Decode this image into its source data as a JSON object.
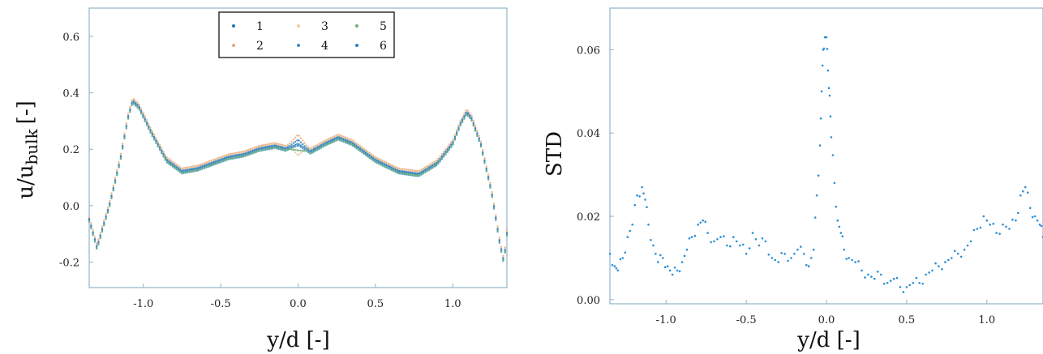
{
  "colors": {
    "run_1": "#1f77b4",
    "run_2": "#e8a87c",
    "run_3": "#f0c9a0",
    "run_4": "#3b8fc4",
    "run_5": "#6fb07f",
    "run_6": "#2a7fc0",
    "std": "#2b8fd6",
    "axis": "#8fb3c8"
  },
  "chart_data": [
    {
      "type": "scatter",
      "xlabel": "y/d [-]",
      "ylabel_main": "u/u",
      "ylabel_sub": "bulk",
      "ylabel_unit": "[-]",
      "xlim": [
        -1.35,
        1.35
      ],
      "ylim": [
        -0.29,
        0.7
      ],
      "x_ticks": [
        -1.0,
        -0.5,
        0.0,
        0.5,
        1.0
      ],
      "x_tick_labels": [
        "-1.0",
        "-0.5",
        "0.0",
        "0.5",
        "1.0"
      ],
      "y_ticks": [
        -0.2,
        0.0,
        0.2,
        0.4,
        0.6
      ],
      "y_tick_labels": [
        "-0.2",
        "0.0",
        "0.2",
        "0.4",
        "0.6"
      ],
      "grid": false,
      "legend": {
        "placement": "top-center",
        "columns": 3,
        "order": [
          "1",
          "3",
          "5",
          "2",
          "4",
          "6"
        ]
      },
      "profile_points": [
        [
          -1.35,
          -0.05
        ],
        [
          -1.3,
          -0.15
        ],
        [
          -1.22,
          0.0
        ],
        [
          -1.15,
          0.16
        ],
        [
          -1.1,
          0.31
        ],
        [
          -1.07,
          0.37
        ],
        [
          -1.03,
          0.35
        ],
        [
          -0.95,
          0.26
        ],
        [
          -0.85,
          0.16
        ],
        [
          -0.75,
          0.12
        ],
        [
          -0.65,
          0.13
        ],
        [
          -0.55,
          0.15
        ],
        [
          -0.45,
          0.17
        ],
        [
          -0.35,
          0.18
        ],
        [
          -0.25,
          0.2
        ],
        [
          -0.15,
          0.21
        ],
        [
          -0.08,
          0.2
        ],
        [
          0.0,
          0.22
        ],
        [
          0.08,
          0.19
        ],
        [
          0.18,
          0.22
        ],
        [
          0.26,
          0.24
        ],
        [
          0.35,
          0.22
        ],
        [
          0.5,
          0.16
        ],
        [
          0.65,
          0.12
        ],
        [
          0.78,
          0.11
        ],
        [
          0.9,
          0.15
        ],
        [
          1.0,
          0.22
        ],
        [
          1.05,
          0.29
        ],
        [
          1.09,
          0.33
        ],
        [
          1.12,
          0.31
        ],
        [
          1.18,
          0.22
        ],
        [
          1.25,
          0.05
        ],
        [
          1.3,
          -0.12
        ],
        [
          1.33,
          -0.2
        ],
        [
          1.35,
          -0.1
        ]
      ],
      "series": [
        {
          "name": "1",
          "color_key": "run_1",
          "offset": 0.0,
          "center_offset": 0.0
        },
        {
          "name": "2",
          "color_key": "run_2",
          "offset": 0.012,
          "center_offset": 0.02
        },
        {
          "name": "3",
          "color_key": "run_3",
          "offset": 0.008,
          "center_offset": -0.05
        },
        {
          "name": "4",
          "color_key": "run_4",
          "offset": -0.006,
          "center_offset": 0.0
        },
        {
          "name": "5",
          "color_key": "run_5",
          "offset": -0.004,
          "center_offset": -0.02
        },
        {
          "name": "6",
          "color_key": "run_6",
          "offset": 0.004,
          "center_offset": 0.01
        }
      ]
    },
    {
      "type": "scatter",
      "xlabel": "y/d [-]",
      "ylabel": "STD",
      "xlim": [
        -1.35,
        1.35
      ],
      "ylim": [
        -0.001,
        0.07
      ],
      "x_ticks": [
        -1.0,
        -0.5,
        0.0,
        0.5,
        1.0
      ],
      "x_tick_labels": [
        "-1.0",
        "-0.5",
        "0.0",
        "0.5",
        "1.0"
      ],
      "y_ticks": [
        0.0,
        0.02,
        0.04,
        0.06
      ],
      "y_tick_labels": [
        "0.00",
        "0.02",
        "0.04",
        "0.06"
      ],
      "grid": false,
      "points": [
        [
          -1.35,
          0.011
        ],
        [
          -1.32,
          0.008
        ],
        [
          -1.3,
          0.007
        ],
        [
          -1.27,
          0.01
        ],
        [
          -1.24,
          0.015
        ],
        [
          -1.21,
          0.018
        ],
        [
          -1.18,
          0.025
        ],
        [
          -1.15,
          0.027
        ],
        [
          -1.13,
          0.024
        ],
        [
          -1.11,
          0.018
        ],
        [
          -1.08,
          0.013
        ],
        [
          -1.05,
          0.009
        ],
        [
          -1.02,
          0.01
        ],
        [
          -0.99,
          0.008
        ],
        [
          -0.96,
          0.006
        ],
        [
          -0.93,
          0.007
        ],
        [
          -0.9,
          0.009
        ],
        [
          -0.87,
          0.012
        ],
        [
          -0.84,
          0.015
        ],
        [
          -0.8,
          0.018
        ],
        [
          -0.77,
          0.019
        ],
        [
          -0.74,
          0.016
        ],
        [
          -0.7,
          0.014
        ],
        [
          -0.66,
          0.015
        ],
        [
          -0.62,
          0.013
        ],
        [
          -0.58,
          0.015
        ],
        [
          -0.54,
          0.013
        ],
        [
          -0.5,
          0.011
        ],
        [
          -0.46,
          0.016
        ],
        [
          -0.42,
          0.013
        ],
        [
          -0.38,
          0.014
        ],
        [
          -0.34,
          0.01
        ],
        [
          -0.3,
          0.009
        ],
        [
          -0.26,
          0.011
        ],
        [
          -0.22,
          0.01
        ],
        [
          -0.18,
          0.012
        ],
        [
          -0.14,
          0.011
        ],
        [
          -0.11,
          0.008
        ],
        [
          -0.08,
          0.012
        ],
        [
          -0.06,
          0.025
        ],
        [
          -0.04,
          0.037
        ],
        [
          -0.03,
          0.05
        ],
        [
          -0.02,
          0.06
        ],
        [
          -0.01,
          0.063
        ],
        [
          0.0,
          0.063
        ],
        [
          0.01,
          0.055
        ],
        [
          0.02,
          0.049
        ],
        [
          0.03,
          0.039
        ],
        [
          0.05,
          0.028
        ],
        [
          0.07,
          0.019
        ],
        [
          0.09,
          0.016
        ],
        [
          0.11,
          0.012
        ],
        [
          0.14,
          0.01
        ],
        [
          0.18,
          0.009
        ],
        [
          0.22,
          0.007
        ],
        [
          0.26,
          0.006
        ],
        [
          0.3,
          0.005
        ],
        [
          0.34,
          0.006
        ],
        [
          0.38,
          0.004
        ],
        [
          0.42,
          0.005
        ],
        [
          0.46,
          0.003
        ],
        [
          0.5,
          0.003
        ],
        [
          0.54,
          0.004
        ],
        [
          0.58,
          0.004
        ],
        [
          0.62,
          0.006
        ],
        [
          0.66,
          0.007
        ],
        [
          0.7,
          0.008
        ],
        [
          0.74,
          0.009
        ],
        [
          0.78,
          0.01
        ],
        [
          0.82,
          0.011
        ],
        [
          0.86,
          0.012
        ],
        [
          0.9,
          0.014
        ],
        [
          0.94,
          0.017
        ],
        [
          0.98,
          0.02
        ],
        [
          1.02,
          0.018
        ],
        [
          1.06,
          0.016
        ],
        [
          1.1,
          0.018
        ],
        [
          1.14,
          0.017
        ],
        [
          1.18,
          0.019
        ],
        [
          1.21,
          0.025
        ],
        [
          1.24,
          0.027
        ],
        [
          1.27,
          0.022
        ],
        [
          1.3,
          0.02
        ],
        [
          1.33,
          0.018
        ],
        [
          1.35,
          0.015
        ]
      ]
    }
  ]
}
